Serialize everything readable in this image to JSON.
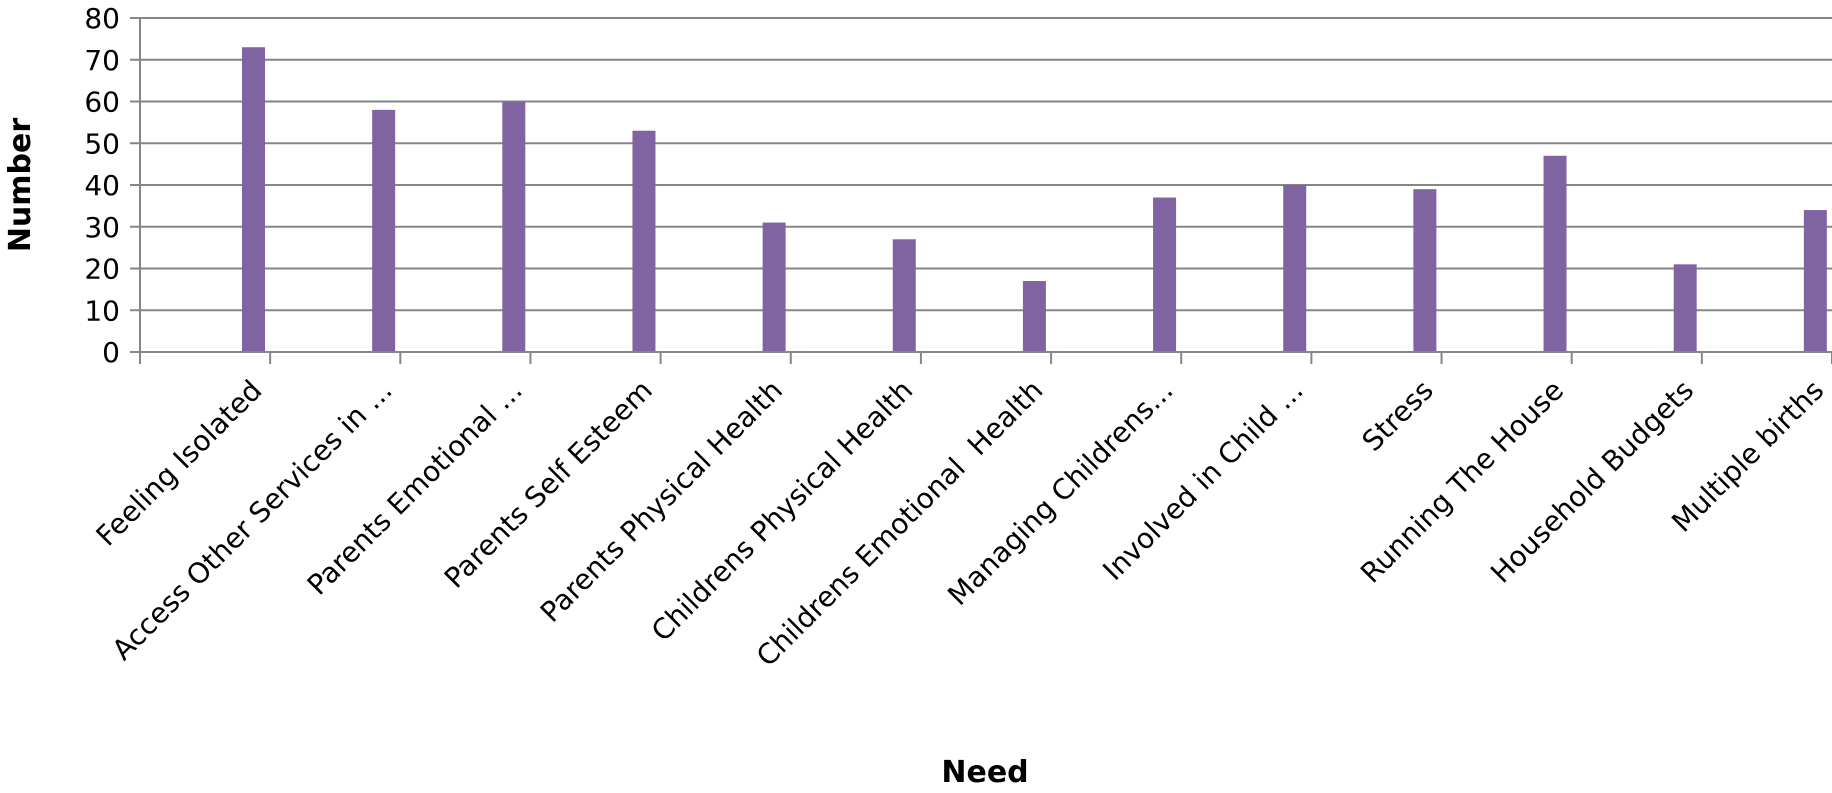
{
  "chart_data": {
    "type": "bar",
    "title": "",
    "xlabel": "Need",
    "ylabel": "Number",
    "ylim": [
      0,
      80
    ],
    "yticks": [
      0,
      10,
      20,
      30,
      40,
      50,
      60,
      70,
      80
    ],
    "grid": true,
    "legend": "none",
    "bar_color": "#8064A2",
    "categories": [
      "Feeling Isolated",
      "Access Other Services in ...",
      "Parents Emotional ...",
      "Parents Self Esteem",
      "Parents Physical Health",
      "Childrens Physical Health",
      "Childrens Emotional  Health",
      "Managing Childrens...",
      "Involved in Child ...",
      "Stress",
      "Running The House",
      "Household Budgets",
      "Multiple births"
    ],
    "values": [
      73,
      58,
      60,
      53,
      31,
      27,
      17,
      37,
      40,
      39,
      47,
      21,
      34
    ]
  }
}
